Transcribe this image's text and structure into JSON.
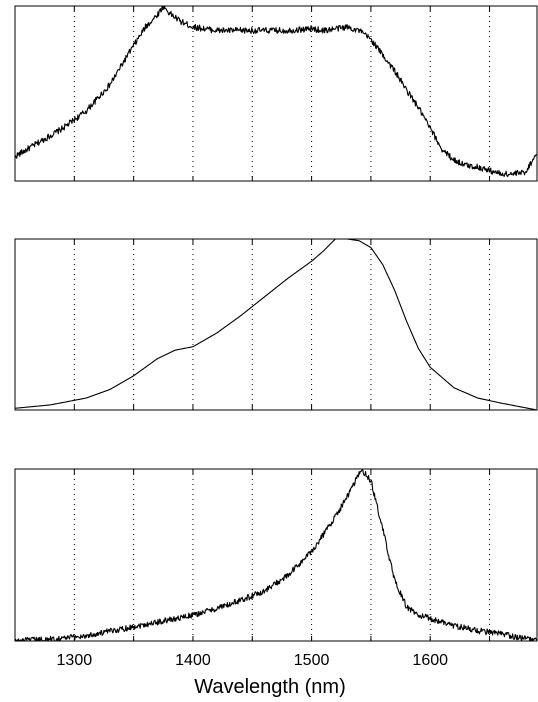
{
  "chart_data": [
    {
      "type": "line",
      "panel": "top",
      "xlim": [
        1250,
        1690
      ],
      "ylim": [
        0,
        1
      ],
      "grid": "vertical-dotted",
      "yticks_labeled": false,
      "noisy": true,
      "series": [
        {
          "x": [
            1250,
            1270,
            1290,
            1310,
            1330,
            1345,
            1360,
            1370,
            1375,
            1380,
            1390,
            1400,
            1420,
            1440,
            1460,
            1480,
            1500,
            1510,
            1520,
            1530,
            1540,
            1550,
            1560,
            1570,
            1580,
            1590,
            1600,
            1610,
            1620,
            1630,
            1640,
            1650,
            1660,
            1670,
            1680,
            1690
          ],
          "y": [
            0.14,
            0.22,
            0.3,
            0.4,
            0.55,
            0.72,
            0.88,
            0.95,
            1.0,
            0.96,
            0.91,
            0.88,
            0.86,
            0.86,
            0.86,
            0.86,
            0.87,
            0.86,
            0.87,
            0.88,
            0.86,
            0.81,
            0.72,
            0.63,
            0.52,
            0.42,
            0.3,
            0.18,
            0.12,
            0.09,
            0.08,
            0.06,
            0.04,
            0.04,
            0.05,
            0.16
          ]
        }
      ]
    },
    {
      "type": "line",
      "panel": "middle",
      "xlim": [
        1250,
        1690
      ],
      "ylim": [
        0,
        1
      ],
      "grid": "vertical-dotted",
      "yticks_labeled": false,
      "noisy": false,
      "series": [
        {
          "x": [
            1250,
            1280,
            1310,
            1330,
            1350,
            1370,
            1385,
            1400,
            1420,
            1440,
            1460,
            1480,
            1500,
            1510,
            1520,
            1530,
            1540,
            1550,
            1560,
            1570,
            1580,
            1590,
            1600,
            1620,
            1640,
            1660,
            1690
          ],
          "y": [
            0.01,
            0.03,
            0.07,
            0.12,
            0.2,
            0.3,
            0.35,
            0.37,
            0.45,
            0.55,
            0.66,
            0.77,
            0.87,
            0.93,
            1.0,
            1.0,
            0.99,
            0.95,
            0.85,
            0.7,
            0.52,
            0.36,
            0.25,
            0.13,
            0.07,
            0.04,
            0.0
          ]
        }
      ]
    },
    {
      "type": "line",
      "panel": "bottom",
      "xlim": [
        1250,
        1690
      ],
      "ylim": [
        0,
        1
      ],
      "grid": "vertical-dotted",
      "yticks_labeled": false,
      "noisy": true,
      "xticks": [
        1300,
        1400,
        1500,
        1600
      ],
      "xlabel": "Wavelength (nm)",
      "series": [
        {
          "x": [
            1250,
            1280,
            1310,
            1340,
            1370,
            1400,
            1430,
            1460,
            1480,
            1500,
            1515,
            1525,
            1535,
            1542,
            1550,
            1560,
            1570,
            1580,
            1590,
            1600,
            1620,
            1640,
            1660,
            1690
          ],
          "y": [
            0.0,
            0.01,
            0.03,
            0.07,
            0.11,
            0.15,
            0.21,
            0.29,
            0.38,
            0.52,
            0.67,
            0.78,
            0.9,
            1.0,
            0.93,
            0.65,
            0.35,
            0.2,
            0.15,
            0.13,
            0.09,
            0.06,
            0.04,
            0.0
          ]
        }
      ]
    }
  ]
}
